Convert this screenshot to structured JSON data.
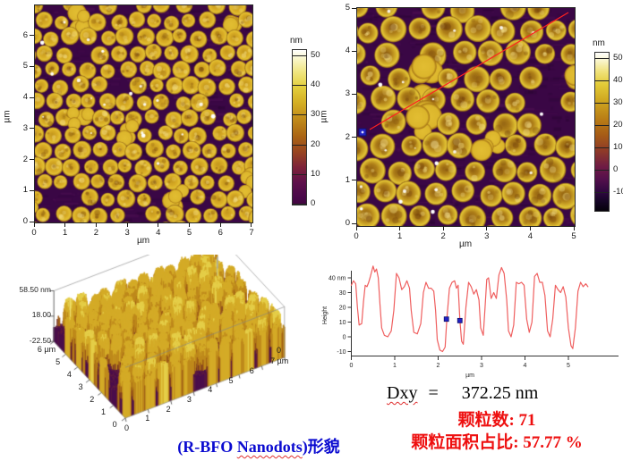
{
  "panels": {
    "afm1": {
      "x_ticks": [
        "0",
        "1",
        "2",
        "3",
        "4",
        "5",
        "6",
        "7"
      ],
      "y_ticks": [
        "0",
        "1",
        "2",
        "3",
        "4",
        "5",
        "6"
      ],
      "x_label": "µm",
      "y_label": "µm",
      "colorbar": {
        "title": "nm",
        "ticks": [
          "50",
          "40",
          "30",
          "20",
          "10",
          "0"
        ]
      }
    },
    "afm2": {
      "x_ticks": [
        "0",
        "1",
        "2",
        "3",
        "4",
        "5"
      ],
      "y_ticks": [
        "0",
        "1",
        "2",
        "3",
        "4",
        "5"
      ],
      "x_label": "µm",
      "y_label": "µm",
      "colorbar": {
        "title": "nm",
        "ticks": [
          "50",
          "40",
          "30",
          "20",
          "10",
          "0",
          "-10"
        ]
      }
    },
    "surface3d": {
      "z_ticks": [
        "58.50 nm",
        "18.00",
        "-22.50"
      ],
      "y_axis_labels": [
        "6 µm",
        "5",
        "4",
        "3",
        "2",
        "1",
        "0"
      ],
      "x_axis_labels": [
        "0",
        "1",
        "2",
        "3",
        "4",
        "5",
        "6",
        "7 µm"
      ],
      "corner_label": "0"
    },
    "profile": {
      "y_label": "Height",
      "y_ticks": [
        "40 nm",
        "30",
        "20",
        "10",
        "0",
        "-10"
      ],
      "y_tick_values": [
        40,
        30,
        20,
        10,
        0,
        -10
      ],
      "x_ticks": [
        "0",
        "1",
        "2",
        "3",
        "4",
        "5"
      ],
      "x_label": "µm"
    }
  },
  "annotations": {
    "dxy_term": "Dxy",
    "dxy_eq": "=",
    "dxy_value": "372.25 nm",
    "particle_count": "颗粒数: 71",
    "area_ratio": "颗粒面积占比: 57.77 %",
    "caption_pre": "(R-BFO ",
    "caption_word": "Nanodots",
    "caption_post": ")形貌"
  },
  "colors": {
    "profile_line": "#ef5f5f",
    "cursor_blue": "#2222c4",
    "scanline_red": "#ff2020",
    "annotation_red": "#ee0f0f",
    "caption_blue": "#0a0ad0",
    "afm_background_purple": "#3a0745",
    "afm_dot_gold": "#d9ad26"
  },
  "chart_data": [
    {
      "id": "afm_image_topleft",
      "type": "heatmap",
      "title": "",
      "xlabel": "µm",
      "ylabel": "µm",
      "x_range_um": [
        0,
        7
      ],
      "y_range_um": [
        0,
        7
      ],
      "x_tick_values": [
        0,
        1,
        2,
        3,
        4,
        5,
        6,
        7
      ],
      "y_tick_values": [
        0,
        1,
        2,
        3,
        4,
        5,
        6
      ],
      "colorbar_label": "nm",
      "colorbar_tick_values": [
        50,
        40,
        30,
        20,
        10,
        0
      ],
      "content": "dense quasi-hexagonal array of gold/yellow nanodots (~0.55 µm diameter) on dark purple substrate, with several merged flower-shaped clusters"
    },
    {
      "id": "afm_image_topright",
      "type": "heatmap",
      "title": "",
      "xlabel": "µm",
      "ylabel": "µm",
      "x_range_um": [
        0,
        5
      ],
      "y_range_um": [
        0,
        5
      ],
      "x_tick_values": [
        0,
        1,
        2,
        3,
        4,
        5
      ],
      "y_tick_values": [
        0,
        1,
        2,
        3,
        4,
        5
      ],
      "colorbar_label": "nm",
      "colorbar_tick_values": [
        50,
        40,
        30,
        20,
        10,
        0,
        -10
      ],
      "overlay_line_um": {
        "from": [
          0.3,
          2.15
        ],
        "to": [
          4.85,
          4.85
        ]
      },
      "overlay_cursor_um": [
        0.2,
        2.1
      ],
      "content": "same nanodot array at higher magnification with red profile section line and blue cursor marker"
    },
    {
      "id": "surface_3d",
      "type": "heatmap",
      "projection": "3d-surface",
      "z_tick_values_nm": [
        58.5,
        18.0,
        -22.5
      ],
      "x_range_um": [
        0,
        7
      ],
      "y_range_um": [
        0,
        6
      ],
      "content": "3D rendered spiky nanodot topography, gold/yellow peaks on purple base with a few tall gray spikes"
    },
    {
      "id": "height_profile",
      "type": "line",
      "xlabel": "µm",
      "ylabel": "Height",
      "ylim": [
        -12,
        50
      ],
      "xlim": [
        0,
        5.6
      ],
      "x_tick_values": [
        0,
        1,
        2,
        3,
        4,
        5
      ],
      "y_tick_values": [
        40,
        30,
        20,
        10,
        0,
        -10
      ],
      "x": [
        0,
        0.05,
        0.1,
        0.14,
        0.18,
        0.24,
        0.28,
        0.32,
        0.36,
        0.4,
        0.44,
        0.5,
        0.54,
        0.58,
        0.62,
        0.66,
        0.7,
        0.76,
        0.84,
        0.92,
        0.98,
        1.04,
        1.1,
        1.16,
        1.22,
        1.28,
        1.34,
        1.38,
        1.44,
        1.52,
        1.6,
        1.66,
        1.72,
        1.78,
        1.84,
        1.9,
        1.94,
        1.98,
        2.04,
        2.1,
        2.16,
        2.2,
        2.26,
        2.32,
        2.38,
        2.42,
        2.46,
        2.5,
        2.54,
        2.58,
        2.64,
        2.7,
        2.76,
        2.82,
        2.88,
        2.94,
        2.98,
        3.04,
        3.08,
        3.12,
        3.16,
        3.22,
        3.28,
        3.34,
        3.4,
        3.46,
        3.52,
        3.58,
        3.62,
        3.68,
        3.74,
        3.8,
        3.86,
        3.92,
        3.98,
        4.04,
        4.1,
        4.16,
        4.22,
        4.28,
        4.34,
        4.4,
        4.46,
        4.52,
        4.58,
        4.64,
        4.7,
        4.76,
        4.82,
        4.88,
        4.94,
        5,
        5.06,
        5.1,
        5.16,
        5.22,
        5.28,
        5.34,
        5.4,
        5.45
      ],
      "y": [
        35,
        38,
        36,
        20,
        8,
        9,
        24,
        35,
        34,
        37,
        41,
        48,
        44,
        46,
        40,
        22,
        6,
        1,
        0,
        4,
        18,
        43,
        40,
        32,
        34,
        38,
        33,
        18,
        3,
        2,
        9,
        30,
        37,
        33,
        33,
        31,
        18,
        -2,
        -9,
        -10,
        -7,
        12,
        33,
        37,
        38,
        33,
        35,
        11,
        -3,
        -5,
        20,
        37,
        34,
        29,
        32,
        25,
        6,
        1,
        20,
        39,
        40,
        26,
        30,
        26,
        42,
        47,
        43,
        25,
        4,
        0,
        8,
        37,
        36,
        37,
        35,
        12,
        3,
        10,
        41,
        43,
        37,
        37,
        28,
        4,
        0,
        12,
        35,
        32,
        30,
        34,
        27,
        6,
        -6,
        -8,
        6,
        31,
        37,
        34,
        36,
        34
      ],
      "cursor_markers": [
        [
          2.19,
          12
        ],
        [
          2.5,
          11
        ]
      ],
      "cursor_distance_nm": 372.25,
      "particle_count": 71,
      "particle_area_percent": 57.77
    }
  ]
}
